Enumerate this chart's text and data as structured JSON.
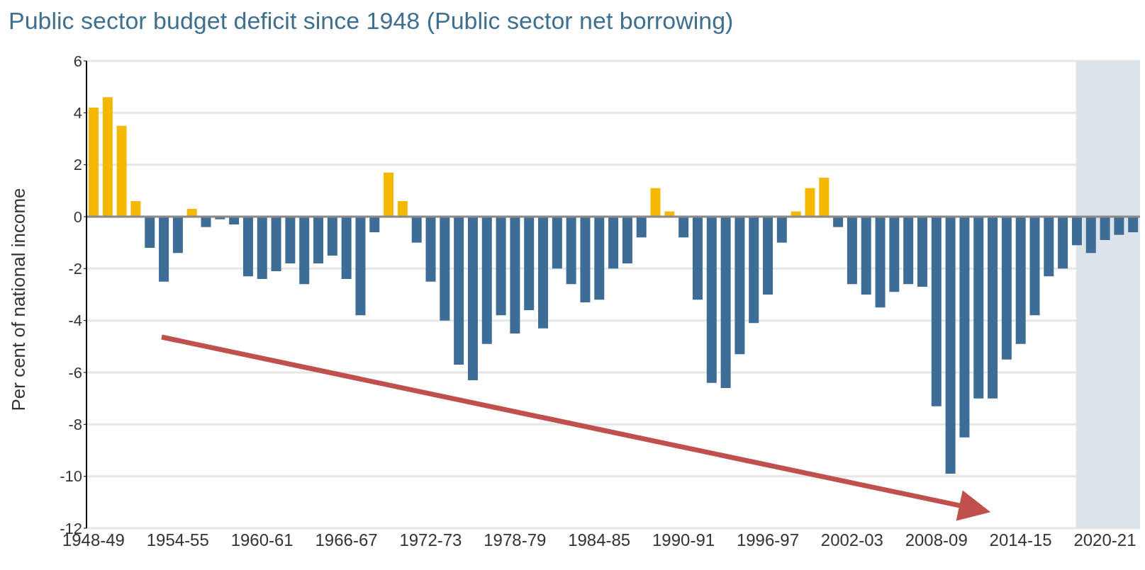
{
  "chart_data": {
    "type": "bar",
    "title": "Public sector budget deficit since 1948 (Public sector net borrowing)",
    "ylabel": "Per cent of national income",
    "categories": [
      "1948-49",
      null,
      null,
      null,
      null,
      null,
      "1954-55",
      null,
      null,
      null,
      null,
      null,
      "1960-61",
      null,
      null,
      null,
      null,
      null,
      "1966-67",
      null,
      null,
      null,
      null,
      null,
      "1972-73",
      null,
      null,
      null,
      null,
      null,
      "1978-79",
      null,
      null,
      null,
      null,
      null,
      "1984-85",
      null,
      null,
      null,
      null,
      null,
      "1990-91",
      null,
      null,
      null,
      null,
      null,
      "1996-97",
      null,
      null,
      null,
      null,
      null,
      "2002-03",
      null,
      null,
      null,
      null,
      null,
      "2008-09",
      null,
      null,
      null,
      null,
      null,
      "2014-15",
      null,
      null,
      null,
      null,
      null,
      "2020-21",
      null,
      null
    ],
    "values": [
      4.2,
      4.6,
      3.5,
      0.6,
      -1.2,
      -2.5,
      -1.4,
      0.3,
      -0.4,
      -0.1,
      -0.3,
      -2.3,
      -2.4,
      -2.1,
      -1.8,
      -2.6,
      -1.8,
      -1.5,
      -2.4,
      -3.8,
      -0.6,
      1.7,
      0.6,
      -1.0,
      -2.5,
      -4.0,
      -5.7,
      -6.3,
      -4.9,
      -3.8,
      -4.5,
      -3.6,
      -4.3,
      -2.0,
      -2.6,
      -3.3,
      -3.2,
      -2.0,
      -1.8,
      -0.8,
      1.1,
      0.2,
      -0.8,
      -3.2,
      -6.4,
      -6.6,
      -5.3,
      -4.1,
      -3.0,
      -1.0,
      0.2,
      1.1,
      1.5,
      -0.4,
      -2.6,
      -3.0,
      -3.5,
      -2.9,
      -2.6,
      -2.7,
      -7.3,
      -9.9,
      -8.5,
      -7.0,
      -7.0,
      -5.5,
      -4.9,
      -3.8,
      -2.3,
      -2.0,
      -1.1,
      -1.4,
      -0.9,
      -0.7,
      -0.6
    ],
    "colors": [
      "#f5b800",
      "#f5b800",
      "#f5b800",
      "#f5b800",
      "#3d6d96",
      "#3d6d96",
      "#3d6d96",
      "#f5b800",
      "#3d6d96",
      "#3d6d96",
      "#3d6d96",
      "#3d6d96",
      "#3d6d96",
      "#3d6d96",
      "#3d6d96",
      "#3d6d96",
      "#3d6d96",
      "#3d6d96",
      "#3d6d96",
      "#3d6d96",
      "#3d6d96",
      "#f5b800",
      "#f5b800",
      "#3d6d96",
      "#3d6d96",
      "#3d6d96",
      "#3d6d96",
      "#3d6d96",
      "#3d6d96",
      "#3d6d96",
      "#3d6d96",
      "#3d6d96",
      "#3d6d96",
      "#3d6d96",
      "#3d6d96",
      "#3d6d96",
      "#3d6d96",
      "#3d6d96",
      "#3d6d96",
      "#3d6d96",
      "#f5b800",
      "#f5b800",
      "#3d6d96",
      "#3d6d96",
      "#3d6d96",
      "#3d6d96",
      "#3d6d96",
      "#3d6d96",
      "#3d6d96",
      "#3d6d96",
      "#f5b800",
      "#f5b800",
      "#f5b800",
      "#3d6d96",
      "#3d6d96",
      "#3d6d96",
      "#3d6d96",
      "#3d6d96",
      "#3d6d96",
      "#3d6d96",
      "#3d6d96",
      "#3d6d96",
      "#3d6d96",
      "#3d6d96",
      "#3d6d96",
      "#3d6d96",
      "#3d6d96",
      "#3d6d96",
      "#3d6d96",
      "#3d6d96",
      "#3d6d96",
      "#3d6d96",
      "#3d6d96",
      "#3d6d96",
      "#3d6d96"
    ],
    "ylim": [
      -12,
      6
    ],
    "yticks": [
      -12,
      -10,
      -8,
      -6,
      -4,
      -2,
      0,
      2,
      4,
      6
    ],
    "grid": "y",
    "ref_lines": [
      {
        "axis": "y",
        "value": 0,
        "color": "#8a8a8a"
      }
    ]
  }
}
